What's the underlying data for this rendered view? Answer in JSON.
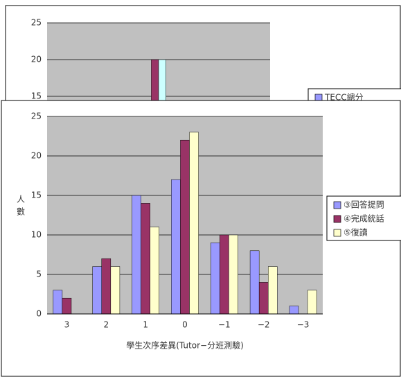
{
  "chart_data": [
    {
      "type": "bar",
      "categories": [
        null,
        null,
        null,
        null,
        null,
        null,
        null
      ],
      "series": [
        {
          "color": "#993366",
          "values": [
            null,
            null,
            null,
            20,
            null,
            null,
            null
          ]
        },
        {
          "color": "#ccffff",
          "values": [
            null,
            null,
            null,
            20,
            null,
            null,
            null
          ]
        }
      ],
      "legend": [
        "TECC總分"
      ],
      "legend_color": "#9999ff",
      "ylim": [
        0,
        25
      ],
      "yticks": [
        15,
        20,
        25
      ],
      "grid": true
    },
    {
      "type": "bar",
      "y_label": [
        "人",
        "數"
      ],
      "x_label": "學生次序差異(Tutor−分班測驗)",
      "categories": [
        "3",
        "2",
        "1",
        "0",
        "−1",
        "−2",
        "−3"
      ],
      "series": [
        {
          "name": "③回答提問",
          "color": "#9999ff",
          "values": [
            3,
            6,
            15,
            17,
            9,
            8,
            1
          ]
        },
        {
          "name": "④完成統話",
          "color": "#993366",
          "values": [
            2,
            7,
            14,
            22,
            10,
            4,
            0
          ]
        },
        {
          "name": "⑤復讀",
          "color": "#ffffcc",
          "values": [
            0,
            6,
            11,
            23,
            10,
            6,
            3
          ]
        }
      ],
      "ylim": [
        0,
        25
      ],
      "yticks": [
        0,
        5,
        10,
        15,
        20,
        25
      ],
      "grid": true
    }
  ]
}
